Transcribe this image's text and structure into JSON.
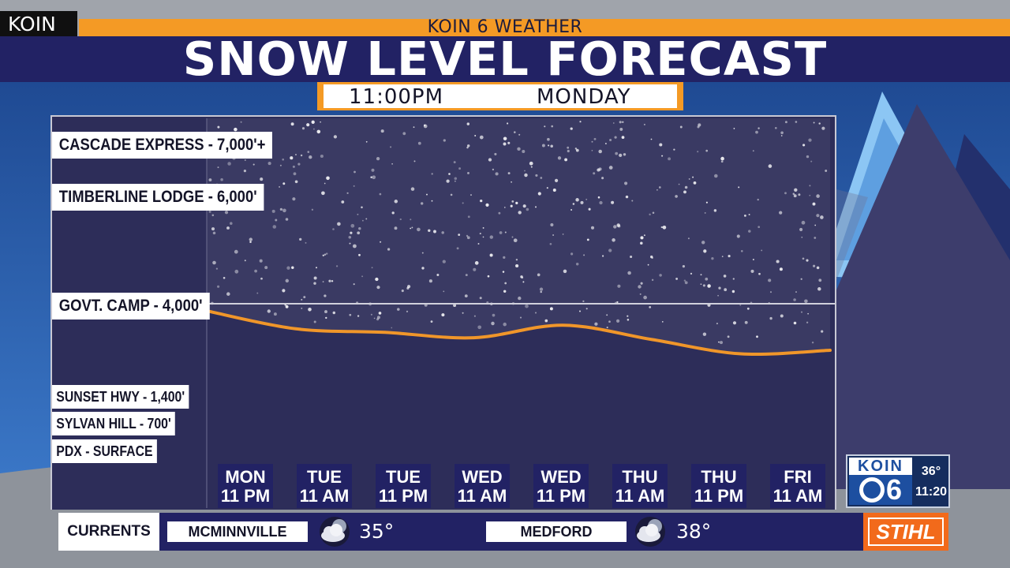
{
  "station": {
    "tag": "KOIN"
  },
  "header": {
    "subtitle": "KOIN 6 WEATHER",
    "title": "SNOW LEVEL FORECAST"
  },
  "timestamp": {
    "time": "11:00PM",
    "day": "MONDAY"
  },
  "colors": {
    "accent": "#f49a25",
    "navy": "#222264",
    "panel": "#2d2d59",
    "line": "#f0962a",
    "sponsor": "#f26a1b"
  },
  "chart_data": {
    "type": "line",
    "title": "SNOW LEVEL FORECAST",
    "x": [
      "MON 11 PM",
      "TUE 11 AM",
      "TUE 11 PM",
      "WED 11 AM",
      "WED 11 PM",
      "THU 11 AM",
      "THU 11 PM",
      "FRI 11 AM"
    ],
    "x_tick_labels": [
      {
        "day": "MON",
        "time": "11 PM"
      },
      {
        "day": "TUE",
        "time": "11 AM"
      },
      {
        "day": "TUE",
        "time": "11 PM"
      },
      {
        "day": "WED",
        "time": "11 AM"
      },
      {
        "day": "WED",
        "time": "11 PM"
      },
      {
        "day": "THU",
        "time": "11 AM"
      },
      {
        "day": "THU",
        "time": "11 PM"
      },
      {
        "day": "FRI",
        "time": "11 AM"
      }
    ],
    "series": [
      {
        "values": [
          3800,
          3300,
          3200,
          3050,
          3400,
          3000,
          2600,
          2700
        ],
        "color": "#f0962a"
      }
    ],
    "reference_levels": [
      {
        "label": "CASCADE EXPRESS - 7,000'+",
        "value": 7000
      },
      {
        "label": "TIMBERLINE LODGE - 6,000'",
        "value": 6000
      },
      {
        "label": "GOVT. CAMP - 4,000'",
        "value": 4000
      },
      {
        "label": "SUNSET HWY - 1,400'",
        "value": 1400
      },
      {
        "label": "SYLVAN HILL - 700'",
        "value": 700
      },
      {
        "label": "PDX - SURFACE",
        "value": 0
      }
    ],
    "shaded_snow_region_above": 4000,
    "grid": false
  },
  "logo": {
    "brand": "KOIN",
    "number": "6",
    "temp": "36°",
    "time": "11:20"
  },
  "ticker": {
    "label": "CURRENTS",
    "cities": [
      {
        "name": "MCMINNVILLE",
        "temp": "35°",
        "icon": "partly-cloudy-night-icon"
      },
      {
        "name": "MEDFORD",
        "temp": "38°",
        "icon": "partly-cloudy-night-icon"
      }
    ],
    "sponsor": "STIHL"
  }
}
